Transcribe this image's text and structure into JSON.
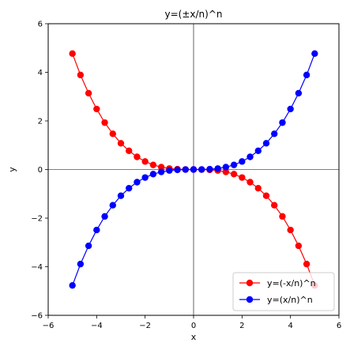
{
  "chart_data": {
    "type": "line",
    "title": "y=(±x/n)^n",
    "xlabel": "x",
    "ylabel": "y",
    "xlim": [
      -6,
      6
    ],
    "ylim": [
      -6,
      6
    ],
    "xticks": [
      -6,
      -4,
      -2,
      0,
      2,
      4,
      6
    ],
    "yticks": [
      -6,
      -4,
      -2,
      0,
      2,
      4,
      6
    ],
    "x": [
      -5.0,
      -4.667,
      -4.333,
      -4.0,
      -3.667,
      -3.333,
      -3.0,
      -2.667,
      -2.333,
      -2.0,
      -1.667,
      -1.333,
      -1.0,
      -0.667,
      -0.333,
      0.0,
      0.333,
      0.667,
      1.0,
      1.333,
      1.667,
      2.0,
      2.333,
      2.667,
      3.0,
      3.333,
      3.667,
      4.0,
      4.333,
      4.667,
      5.0
    ],
    "series": [
      {
        "name": "y=(-x/n)^n",
        "color": "#ff0000",
        "values": [
          4.77,
          3.89,
          3.14,
          2.49,
          1.93,
          1.47,
          1.08,
          0.77,
          0.52,
          0.33,
          0.19,
          0.1,
          0.04,
          0.012,
          0.001,
          0.0,
          -0.001,
          -0.012,
          -0.04,
          -0.1,
          -0.19,
          -0.33,
          -0.52,
          -0.77,
          -1.08,
          -1.47,
          -1.93,
          -2.49,
          -3.14,
          -3.89,
          -4.77
        ]
      },
      {
        "name": "y=(x/n)^n",
        "color": "#0000ff",
        "values": [
          -4.77,
          -3.89,
          -3.14,
          -2.49,
          -1.93,
          -1.47,
          -1.08,
          -0.77,
          -0.52,
          -0.33,
          -0.19,
          -0.1,
          -0.04,
          -0.012,
          -0.001,
          0.0,
          0.001,
          0.012,
          0.04,
          0.1,
          0.19,
          0.33,
          0.52,
          0.77,
          1.08,
          1.47,
          1.93,
          2.49,
          3.14,
          3.89,
          4.77
        ]
      }
    ],
    "grid": false,
    "legend_position": "lower-right",
    "reference_lines": [
      "x=0",
      "y=0"
    ]
  }
}
